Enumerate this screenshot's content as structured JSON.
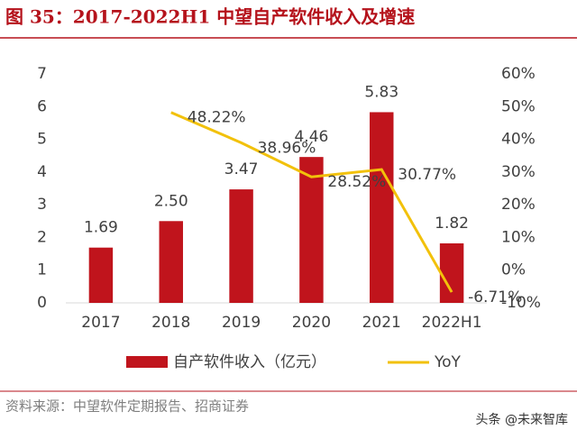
{
  "chart_data": {
    "type": "bar_line",
    "title": "图 35：2017-2022H1 中望自产软件收入及增速",
    "categories": [
      "2017",
      "2018",
      "2019",
      "2020",
      "2021",
      "2022H1"
    ],
    "series": [
      {
        "name": "自产软件收入（亿元）",
        "type": "bar",
        "color": "#c0141c",
        "values": [
          1.69,
          2.5,
          3.47,
          4.46,
          5.83,
          1.82
        ],
        "value_labels": [
          "1.69",
          "2.50",
          "3.47",
          "4.46",
          "5.83",
          "1.82"
        ]
      },
      {
        "name": "YoY",
        "type": "line",
        "axis": "y2",
        "color": "#f2c10b",
        "values": [
          null,
          48.22,
          38.96,
          28.52,
          30.77,
          -6.71
        ],
        "value_labels": [
          null,
          "48.22%",
          "38.96%",
          "28.52%",
          "30.77%",
          "-6.71%"
        ]
      }
    ],
    "ylim": [
      0,
      7
    ],
    "yticks": [
      0,
      1,
      2,
      3,
      4,
      5,
      6,
      7
    ],
    "y2lim": [
      -10,
      60
    ],
    "y2ticks": [
      {
        "value": -10,
        "label": "-10%"
      },
      {
        "value": 0,
        "label": "0%"
      },
      {
        "value": 10,
        "label": "10%"
      },
      {
        "value": 20,
        "label": "20%"
      },
      {
        "value": 30,
        "label": "30%"
      },
      {
        "value": 40,
        "label": "40%"
      },
      {
        "value": 50,
        "label": "50%"
      },
      {
        "value": 60,
        "label": "60%"
      }
    ],
    "grid": false,
    "source": "资料来源：中望软件定期报告、招商证券",
    "watermark": "头条 @未来智库"
  }
}
